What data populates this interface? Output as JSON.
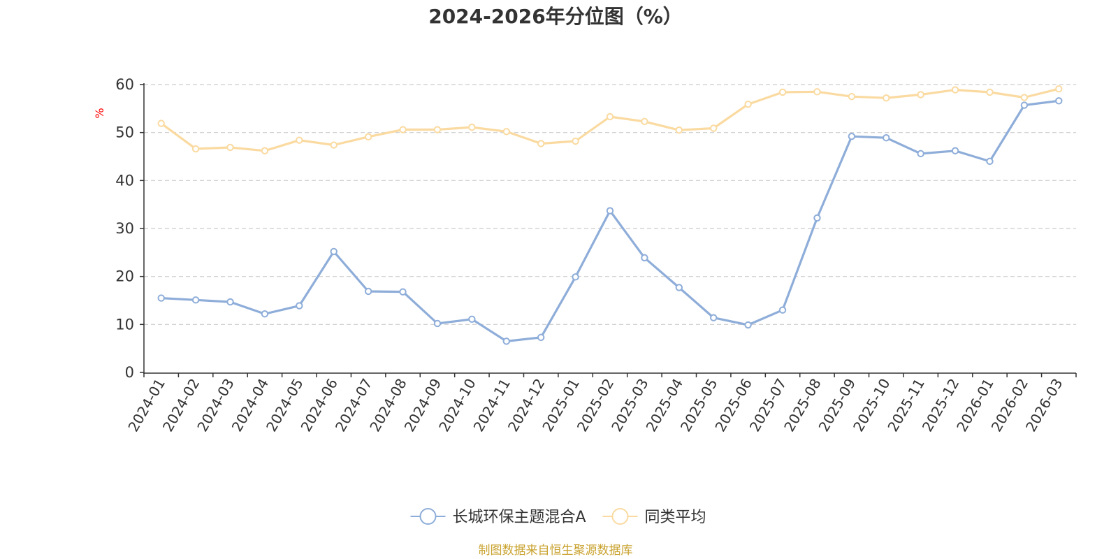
{
  "chart_data": {
    "type": "line",
    "title": "2024-2026年分位图（%）",
    "ylabel": "%",
    "xlabel": "",
    "ylim": [
      0,
      60
    ],
    "yticks": [
      0,
      10,
      20,
      30,
      40,
      50,
      60
    ],
    "grid": true,
    "legend_position": "bottom-center",
    "categories": [
      "2024-01",
      "2024-02",
      "2024-03",
      "2024-04",
      "2024-05",
      "2024-06",
      "2024-07",
      "2024-08",
      "2024-09",
      "2024-10",
      "2024-11",
      "2024-12",
      "2025-01",
      "2025-02",
      "2025-03",
      "2025-04",
      "2025-05",
      "2025-06",
      "2025-07",
      "2025-08",
      "2025-09",
      "2025-10",
      "2025-11",
      "2025-12",
      "2026-01",
      "2026-02",
      "2026-03"
    ],
    "series": [
      {
        "name": "长城环保主题混合A",
        "color": "#8EADD9",
        "values": [
          15.5,
          15.1,
          14.7,
          12.2,
          13.9,
          25.2,
          16.9,
          16.8,
          10.2,
          11.1,
          6.5,
          7.3,
          19.9,
          33.7,
          23.9,
          17.7,
          11.4,
          9.9,
          13.0,
          32.2,
          49.2,
          48.9,
          45.6,
          46.2,
          44.0,
          55.7,
          56.6
        ]
      },
      {
        "name": "同类平均",
        "color": "#FADAA0",
        "values": [
          51.9,
          46.6,
          46.9,
          46.2,
          48.4,
          47.4,
          49.1,
          50.6,
          50.6,
          51.1,
          50.2,
          47.7,
          48.2,
          53.3,
          52.3,
          50.5,
          50.9,
          55.9,
          58.4,
          58.5,
          57.5,
          57.2,
          57.9,
          58.9,
          58.4,
          57.3,
          59.1
        ]
      }
    ]
  },
  "footer": {
    "source": "制图数据来自恒生聚源数据库"
  },
  "colors": {
    "axis": "#333333",
    "grid": "#cccccc",
    "ylabel": "#ff0000",
    "source": "#C9A22E",
    "title": "#333333"
  }
}
